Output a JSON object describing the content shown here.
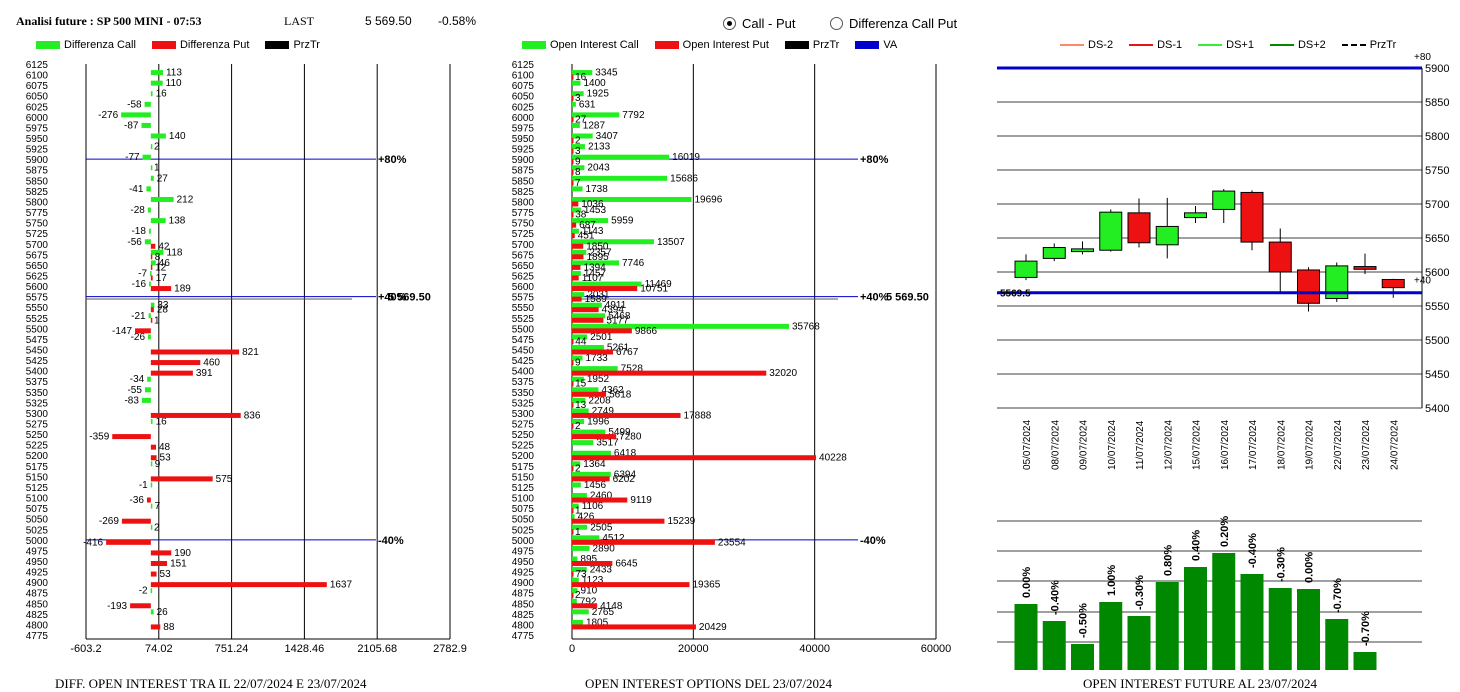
{
  "header": {
    "title": "Analisi future : SP 500 MINI - 07:53",
    "last_label": "LAST",
    "last_value": "5 569.50",
    "change": "-0.58%"
  },
  "radio": {
    "option1": "Call - Put",
    "option2": "Differenza Call Put",
    "selected": "Call - Put"
  },
  "colors": {
    "green": "#22ee22",
    "red": "#ee1111",
    "blue": "#0000cc",
    "darkgreen": "#008800"
  },
  "chart_data": [
    {
      "id": "diff",
      "type": "bar",
      "title": "DIFF. OPEN INTEREST TRA IL 22/07/2024 E 23/07/2024",
      "legend": [
        "Differenza Call",
        "Differenza Put",
        "PrzTr"
      ],
      "xlim": [
        -603.2,
        2782.9
      ],
      "xticks": [
        "-603.2",
        "74.02",
        "751.24",
        "1428.46",
        "2105.68",
        "2782.9"
      ],
      "strikes": [
        "6125",
        "6100",
        "6075",
        "6050",
        "6025",
        "6000",
        "5975",
        "5950",
        "5925",
        "5900",
        "5875",
        "5850",
        "5825",
        "5800",
        "5775",
        "5750",
        "5725",
        "5700",
        "5675",
        "5650",
        "5625",
        "5600",
        "5575",
        "5550",
        "5525",
        "5500",
        "5475",
        "5450",
        "5425",
        "5400",
        "5375",
        "5350",
        "5325",
        "5300",
        "5275",
        "5250",
        "5225",
        "5200",
        "5175",
        "5150",
        "5125",
        "5100",
        "5075",
        "5050",
        "5025",
        "5000",
        "4975",
        "4950",
        "4925",
        "4900",
        "4875",
        "4850",
        "4825",
        "4800",
        "4775"
      ],
      "calls": [
        {
          "strike": 6100,
          "value": 113
        },
        {
          "strike": 6075,
          "value": 110
        },
        {
          "strike": 6050,
          "value": 16
        },
        {
          "strike": 6025,
          "value": -58
        },
        {
          "strike": 6000,
          "value": -276
        },
        {
          "strike": 5975,
          "value": -87
        },
        {
          "strike": 5950,
          "value": 140
        },
        {
          "strike": 5925,
          "value": 2
        },
        {
          "strike": 5900,
          "value": -77
        },
        {
          "strike": 5875,
          "value": 1
        },
        {
          "strike": 5850,
          "value": 27
        },
        {
          "strike": 5825,
          "value": -41
        },
        {
          "strike": 5800,
          "value": 212
        },
        {
          "strike": 5775,
          "value": -28
        },
        {
          "strike": 5750,
          "value": 138
        },
        {
          "strike": 5725,
          "value": -18
        },
        {
          "strike": 5700,
          "value": -56
        },
        {
          "strike": 5675,
          "value": 118
        },
        {
          "strike": 5650,
          "value": 46
        },
        {
          "strike": 5625,
          "value": -7
        },
        {
          "strike": 5600,
          "value": -16
        },
        {
          "strike": 5550,
          "value": 33
        },
        {
          "strike": 5525,
          "value": -21
        },
        {
          "strike": 5475,
          "value": -26
        },
        {
          "strike": 5375,
          "value": -34
        },
        {
          "strike": 5350,
          "value": -55
        },
        {
          "strike": 5325,
          "value": -83
        },
        {
          "strike": 5275,
          "value": 16
        },
        {
          "strike": 5175,
          "value": 9
        },
        {
          "strike": 5125,
          "value": -1
        },
        {
          "strike": 5075,
          "value": 7
        },
        {
          "strike": 5025,
          "value": 2
        },
        {
          "strike": 4875,
          "value": -2
        },
        {
          "strike": 4825,
          "value": 26
        }
      ],
      "puts": [
        {
          "strike": 5700,
          "value": 42
        },
        {
          "strike": 5675,
          "value": 8
        },
        {
          "strike": 5650,
          "value": 12
        },
        {
          "strike": 5625,
          "value": 17
        },
        {
          "strike": 5600,
          "value": 189
        },
        {
          "strike": 5550,
          "value": 28
        },
        {
          "strike": 5525,
          "value": 1
        },
        {
          "strike": 5500,
          "value": -147
        },
        {
          "strike": 5450,
          "value": 821
        },
        {
          "strike": 5425,
          "value": 460
        },
        {
          "strike": 5400,
          "value": 391
        },
        {
          "strike": 5300,
          "value": 836
        },
        {
          "strike": 5250,
          "value": -359
        },
        {
          "strike": 5225,
          "value": 48
        },
        {
          "strike": 5200,
          "value": 53
        },
        {
          "strike": 5150,
          "value": 575
        },
        {
          "strike": 5100,
          "value": -36
        },
        {
          "strike": 5050,
          "value": -269
        },
        {
          "strike": 5000,
          "value": -416
        },
        {
          "strike": 4975,
          "value": 190
        },
        {
          "strike": 4950,
          "value": 151
        },
        {
          "strike": 4925,
          "value": 53
        },
        {
          "strike": 4900,
          "value": 1637
        },
        {
          "strike": 4850,
          "value": -193
        },
        {
          "strike": 4800,
          "value": 88
        }
      ],
      "hlines": [
        {
          "strike": 5900,
          "label": "+80%"
        },
        {
          "strike": 5575,
          "label": "+40%",
          "value_label": "5 569.50"
        },
        {
          "strike": 5000,
          "label": "-40%"
        }
      ]
    },
    {
      "id": "oi",
      "type": "bar",
      "title": "OPEN INTEREST OPTIONS DEL 23/07/2024",
      "legend": [
        "Open Interest Call",
        "Open Interest Put",
        "PrzTr",
        "VA"
      ],
      "xlim": [
        0,
        60000
      ],
      "xticks": [
        "0",
        "20000",
        "40000",
        "60000"
      ],
      "strikes": [
        "6125",
        "6100",
        "6075",
        "6050",
        "6025",
        "6000",
        "5975",
        "5950",
        "5925",
        "5900",
        "5875",
        "5850",
        "5825",
        "5800",
        "5775",
        "5750",
        "5725",
        "5700",
        "5675",
        "5650",
        "5625",
        "5600",
        "5575",
        "5550",
        "5525",
        "5500",
        "5475",
        "5450",
        "5425",
        "5400",
        "5375",
        "5350",
        "5325",
        "5300",
        "5275",
        "5250",
        "5225",
        "5200",
        "5175",
        "5150",
        "5125",
        "5100",
        "5075",
        "5050",
        "5025",
        "5000",
        "4975",
        "4950",
        "4925",
        "4900",
        "4875",
        "4850",
        "4825",
        "4800",
        "4775"
      ],
      "calls": [
        {
          "strike": 6100,
          "value": 3345
        },
        {
          "strike": 6075,
          "value": 1400
        },
        {
          "strike": 6050,
          "value": 1925
        },
        {
          "strike": 6025,
          "value": 631
        },
        {
          "strike": 6000,
          "value": 7792
        },
        {
          "strike": 5975,
          "value": 1287
        },
        {
          "strike": 5950,
          "value": 3407
        },
        {
          "strike": 5925,
          "value": 2133
        },
        {
          "strike": 5900,
          "value": 16019
        },
        {
          "strike": 5875,
          "value": 2043
        },
        {
          "strike": 5850,
          "value": 15686
        },
        {
          "strike": 5825,
          "value": 1738
        },
        {
          "strike": 5800,
          "value": 19696
        },
        {
          "strike": 5775,
          "value": 1453
        },
        {
          "strike": 5750,
          "value": 5959
        },
        {
          "strike": 5725,
          "value": 1143
        },
        {
          "strike": 5700,
          "value": 13507
        },
        {
          "strike": 5675,
          "value": 2357
        },
        {
          "strike": 5650,
          "value": 7746
        },
        {
          "strike": 5625,
          "value": 1457
        },
        {
          "strike": 5600,
          "value": 11469
        },
        {
          "strike": 5575,
          "value": 2031
        },
        {
          "strike": 5550,
          "value": 4911
        },
        {
          "strike": 5525,
          "value": 5468
        },
        {
          "strike": 5500,
          "value": 35768
        },
        {
          "strike": 5475,
          "value": 2501
        },
        {
          "strike": 5450,
          "value": 5261
        },
        {
          "strike": 5425,
          "value": 1733
        },
        {
          "strike": 5400,
          "value": 7528
        },
        {
          "strike": 5375,
          "value": 1952
        },
        {
          "strike": 5350,
          "value": 4362
        },
        {
          "strike": 5325,
          "value": 2208
        },
        {
          "strike": 5300,
          "value": 2749
        },
        {
          "strike": 5275,
          "value": 1996
        },
        {
          "strike": 5250,
          "value": 5499
        },
        {
          "strike": 5225,
          "value": 3517
        },
        {
          "strike": 5200,
          "value": 6418
        },
        {
          "strike": 5175,
          "value": 1364
        },
        {
          "strike": 5150,
          "value": 6394
        },
        {
          "strike": 5125,
          "value": 1456
        },
        {
          "strike": 5100,
          "value": 2460
        },
        {
          "strike": 5075,
          "value": 1106
        },
        {
          "strike": 5050,
          "value": 426
        },
        {
          "strike": 5025,
          "value": 2505
        },
        {
          "strike": 5000,
          "value": 4512
        },
        {
          "strike": 4975,
          "value": 2890
        },
        {
          "strike": 4950,
          "value": 895
        },
        {
          "strike": 4925,
          "value": 2433
        },
        {
          "strike": 4900,
          "value": 1123
        },
        {
          "strike": 4875,
          "value": 910
        },
        {
          "strike": 4850,
          "value": 792
        },
        {
          "strike": 4825,
          "value": 2765
        },
        {
          "strike": 4800,
          "value": 1805
        }
      ],
      "puts": [
        {
          "strike": 6100,
          "value": 16
        },
        {
          "strike": 6050,
          "value": 3
        },
        {
          "strike": 6000,
          "value": 27
        },
        {
          "strike": 5950,
          "value": 2
        },
        {
          "strike": 5925,
          "value": 3
        },
        {
          "strike": 5900,
          "value": 9
        },
        {
          "strike": 5875,
          "value": 8
        },
        {
          "strike": 5850,
          "value": 7
        },
        {
          "strike": 5800,
          "value": 1036
        },
        {
          "strike": 5775,
          "value": 38
        },
        {
          "strike": 5750,
          "value": 687
        },
        {
          "strike": 5725,
          "value": 451
        },
        {
          "strike": 5700,
          "value": 1850
        },
        {
          "strike": 5675,
          "value": 1895
        },
        {
          "strike": 5650,
          "value": 1394
        },
        {
          "strike": 5625,
          "value": 1107
        },
        {
          "strike": 5600,
          "value": 10751
        },
        {
          "strike": 5575,
          "value": 1589
        },
        {
          "strike": 5550,
          "value": 4394
        },
        {
          "strike": 5525,
          "value": 5177
        },
        {
          "strike": 5500,
          "value": 9866
        },
        {
          "strike": 5475,
          "value": 44
        },
        {
          "strike": 5450,
          "value": 6767
        },
        {
          "strike": 5425,
          "value": 9
        },
        {
          "strike": 5400,
          "value": 32020
        },
        {
          "strike": 5375,
          "value": 15
        },
        {
          "strike": 5350,
          "value": 5618
        },
        {
          "strike": 5325,
          "value": 13
        },
        {
          "strike": 5300,
          "value": 17888
        },
        {
          "strike": 5275,
          "value": 2
        },
        {
          "strike": 5250,
          "value": 7280
        },
        {
          "strike": 5200,
          "value": 40228
        },
        {
          "strike": 5175,
          "value": 2
        },
        {
          "strike": 5150,
          "value": 6202
        },
        {
          "strike": 5100,
          "value": 9119
        },
        {
          "strike": 5075,
          "value": 1
        },
        {
          "strike": 5050,
          "value": 15239
        },
        {
          "strike": 5025,
          "value": 1
        },
        {
          "strike": 5000,
          "value": 23554
        },
        {
          "strike": 4950,
          "value": 6645
        },
        {
          "strike": 4925,
          "value": 73
        },
        {
          "strike": 4900,
          "value": 19365
        },
        {
          "strike": 4875,
          "value": 2
        },
        {
          "strike": 4850,
          "value": 4148
        },
        {
          "strike": 4800,
          "value": 20429
        }
      ],
      "hlines": [
        {
          "strike": 5900,
          "label": "+80%"
        },
        {
          "strike": 5575,
          "label": "+40%",
          "value_label": "5 569.50"
        },
        {
          "strike": 5000,
          "label": "-40%"
        }
      ]
    },
    {
      "id": "candles",
      "type": "candlestick",
      "legend": [
        "DS-2",
        "DS-1",
        "DS+1",
        "DS+2",
        "PrzTr"
      ],
      "legend_colors": [
        "#ff8866",
        "#ee1111",
        "#33ee33",
        "#008800",
        "#000000"
      ],
      "ylim": [
        5400,
        5900
      ],
      "yticks": [
        "5400",
        "5450",
        "5500",
        "5550",
        "5600",
        "5650",
        "5700",
        "5750",
        "5800",
        "5850",
        "5900"
      ],
      "dates": [
        "05/07/2024",
        "08/07/2024",
        "09/07/2024",
        "10/07/2024",
        "11/07/2024",
        "12/07/2024",
        "15/07/2024",
        "16/07/2024",
        "17/07/2024",
        "18/07/2024",
        "19/07/2024",
        "22/07/2024",
        "23/07/2024",
        "24/07/2024"
      ],
      "candles": [
        {
          "open": 5592,
          "close": 5616,
          "high": 5626,
          "low": 5588
        },
        {
          "open": 5620,
          "close": 5636,
          "high": 5642,
          "low": 5616
        },
        {
          "open": 5630,
          "close": 5634,
          "high": 5645,
          "low": 5626
        },
        {
          "open": 5632,
          "close": 5688,
          "high": 5692,
          "low": 5630
        },
        {
          "open": 5687,
          "close": 5643,
          "high": 5708,
          "low": 5636
        },
        {
          "open": 5640,
          "close": 5667,
          "high": 5709,
          "low": 5620
        },
        {
          "open": 5680,
          "close": 5687,
          "high": 5697,
          "low": 5672
        },
        {
          "open": 5692,
          "close": 5719,
          "high": 5722,
          "low": 5672
        },
        {
          "open": 5717,
          "close": 5644,
          "high": 5720,
          "low": 5632
        },
        {
          "open": 5644,
          "close": 5600,
          "high": 5664,
          "low": 5570
        },
        {
          "open": 5603,
          "close": 5554,
          "high": 5607,
          "low": 5542
        },
        {
          "open": 5561,
          "close": 5609,
          "high": 5614,
          "low": 5556
        },
        {
          "open": 5608,
          "close": 5604,
          "high": 5627,
          "low": 5597
        },
        {
          "open": 5589,
          "close": 5577,
          "high": 5590,
          "low": 5562
        }
      ],
      "hlines": [
        {
          "value": 5900,
          "label": "+80"
        },
        {
          "value": 5569.5,
          "label": "5569.5",
          "side_label": "+40"
        }
      ]
    },
    {
      "id": "future_oi",
      "type": "bar",
      "title": "OPEN INTEREST FUTURE AL 23/07/2024",
      "labels": [
        "0.00%",
        "-0.40%",
        "-0.50%",
        "1.00%",
        "-0.30%",
        "0.80%",
        "0.40%",
        "0.20%",
        "-0.40%",
        "-0.30%",
        "0.00%",
        "-0.70%",
        "-0.70%"
      ],
      "values": [
        0.0,
        -0.4,
        -0.5,
        1.0,
        -0.3,
        0.8,
        0.4,
        0.2,
        -0.4,
        -0.3,
        0.0,
        -0.7,
        -0.7
      ],
      "relative_heights": [
        0.66,
        0.49,
        0.26,
        0.68,
        0.54,
        0.88,
        1.03,
        1.17,
        0.96,
        0.82,
        0.81,
        0.51,
        0.18
      ]
    }
  ]
}
